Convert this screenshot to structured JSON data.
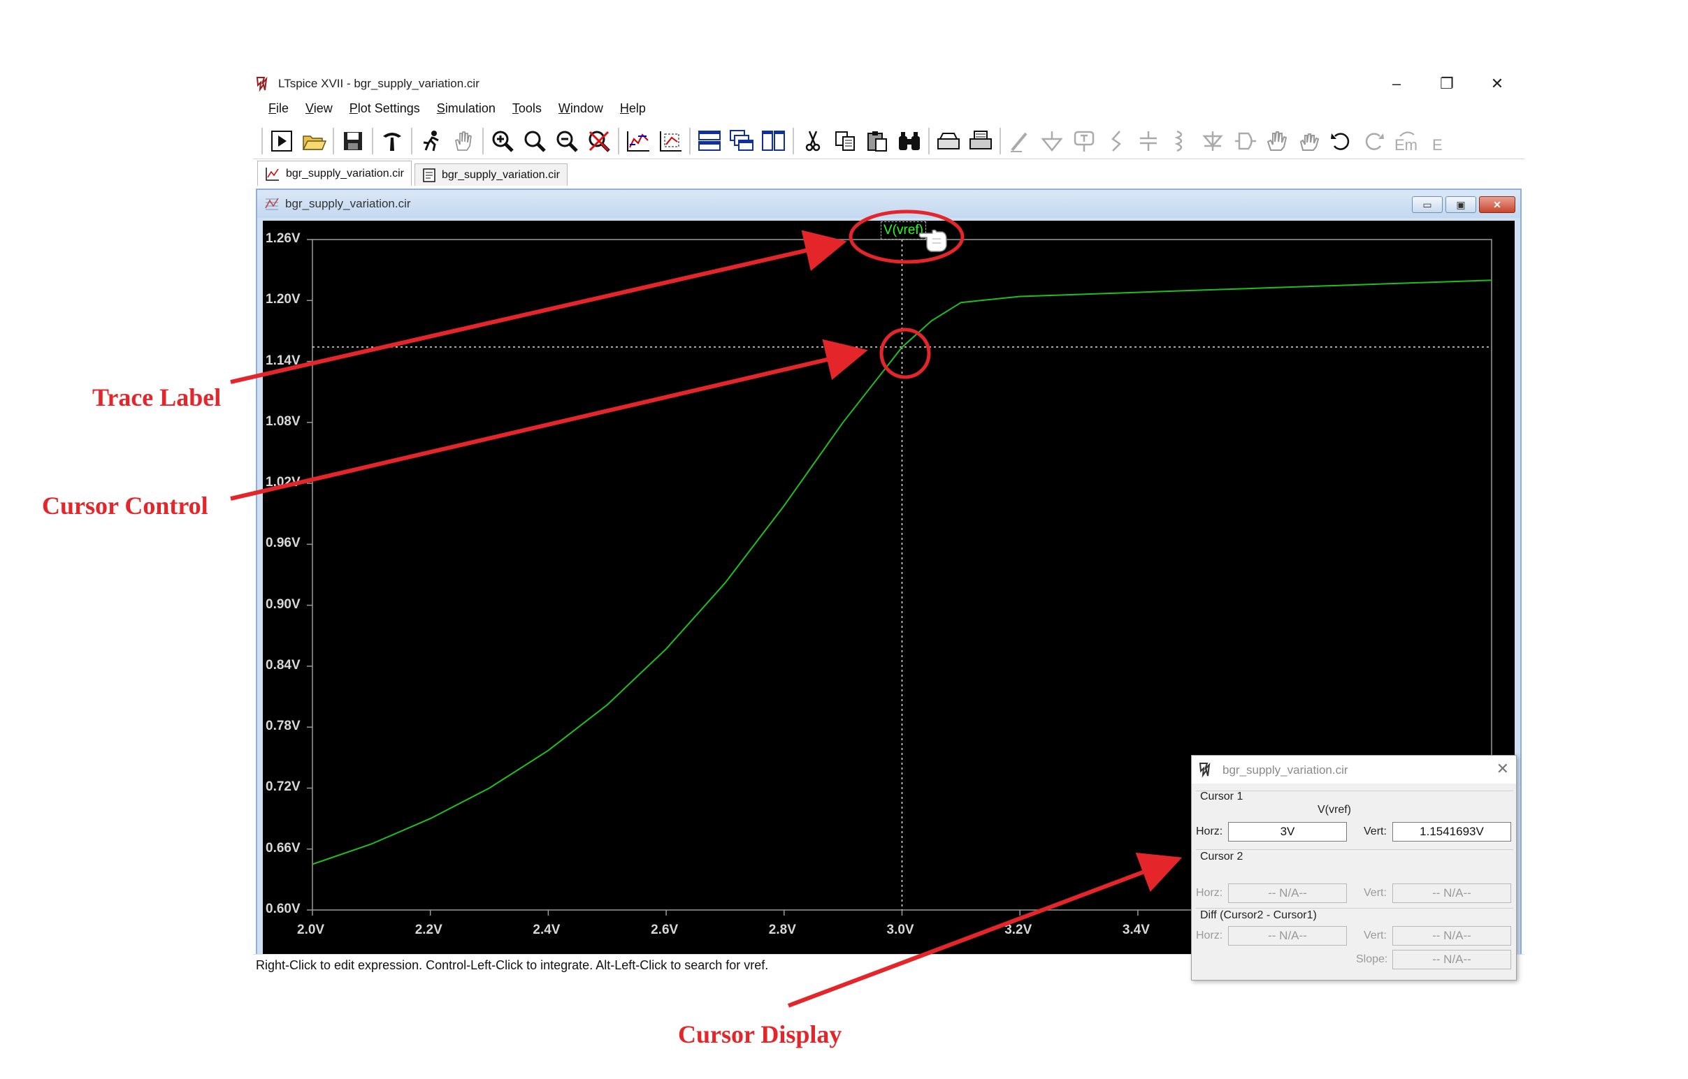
{
  "window": {
    "title": "LTspice XVII - bgr_supply_variation.cir",
    "minimize_glyph": "–",
    "restore_glyph": "❐",
    "close_glyph": "✕"
  },
  "menu": [
    "File",
    "View",
    "Plot Settings",
    "Simulation",
    "Tools",
    "Window",
    "Help"
  ],
  "toolbar": {
    "icons": [
      "run-icon",
      "open-icon",
      "save-icon",
      "control-panel-icon",
      "halt-icon",
      "pan-icon",
      "zoom-in-icon",
      "zoom-fit-icon",
      "zoom-out-icon",
      "zoom-cancel-icon",
      "autorange-icon",
      "plot-bounds-icon",
      "tile-horizontal-icon",
      "cascade-icon",
      "tile-vertical-icon",
      "cut-icon",
      "copy-icon",
      "paste-icon",
      "find-icon",
      "print-preview-icon",
      "print-icon",
      "wire-icon",
      "ground-icon",
      "label-icon",
      "resistor-icon",
      "capacitor-icon",
      "inductor-icon",
      "diode-icon",
      "component-icon",
      "move-icon",
      "drag-icon",
      "undo-icon",
      "redo-icon",
      "rotate-icon",
      "mirror-icon"
    ]
  },
  "tabs": [
    {
      "label": "bgr_supply_variation.cir",
      "icon": "waveform-icon"
    },
    {
      "label": "bgr_supply_variation.cir",
      "icon": "netlist-icon"
    }
  ],
  "plot_window": {
    "title": "bgr_supply_variation.cir",
    "trace_label": "V(vref)"
  },
  "chart_data": {
    "type": "line",
    "title": "",
    "xlabel": "",
    "ylabel": "",
    "x_ticks": [
      "2.0V",
      "2.2V",
      "2.4V",
      "2.6V",
      "2.8V",
      "3.0V",
      "3.2V",
      "3.4V"
    ],
    "y_ticks": [
      "1.26V",
      "1.20V",
      "1.14V",
      "1.08V",
      "1.02V",
      "0.96V",
      "0.90V",
      "0.84V",
      "0.78V",
      "0.72V",
      "0.66V",
      "0.60V"
    ],
    "xlim": [
      2.0,
      4.0
    ],
    "ylim": [
      0.6,
      1.26
    ],
    "grid": false,
    "series": [
      {
        "name": "V(vref)",
        "color": "#1fbf1f",
        "x": [
          2.0,
          2.1,
          2.2,
          2.3,
          2.4,
          2.5,
          2.6,
          2.7,
          2.8,
          2.9,
          3.0,
          3.05,
          3.1,
          3.2,
          3.4,
          3.6,
          3.8,
          4.0
        ],
        "y": [
          0.645,
          0.665,
          0.69,
          0.72,
          0.757,
          0.802,
          0.857,
          0.922,
          0.998,
          1.08,
          1.154,
          1.18,
          1.198,
          1.204,
          1.208,
          1.212,
          1.216,
          1.22
        ]
      }
    ],
    "cursor": {
      "x": 3.0,
      "y": 1.1541693
    }
  },
  "status": "Right-Click to edit expression. Control-Left-Click to integrate. Alt-Left-Click to search for vref.",
  "cursor_dialog": {
    "title": "bgr_supply_variation.cir",
    "close_glyph": "✕",
    "cursor1_label": "Cursor 1",
    "trace_name": "V(vref)",
    "horz_label": "Horz:",
    "vert_label": "Vert:",
    "cursor1_horz": "3V",
    "cursor1_vert": "1.1541693V",
    "cursor2_label": "Cursor 2",
    "cursor2_horz": "-- N/A--",
    "cursor2_vert": "-- N/A--",
    "diff_label": "Diff (Cursor2 - Cursor1)",
    "diff_horz": "-- N/A--",
    "diff_vert": "-- N/A--",
    "slope_label": "Slope:",
    "diff_slope": "-- N/A--"
  },
  "annotations": {
    "trace_label": "Trace Label",
    "cursor_control": "Cursor Control",
    "cursor_display": "Cursor Display",
    "color": "#e4262b"
  }
}
